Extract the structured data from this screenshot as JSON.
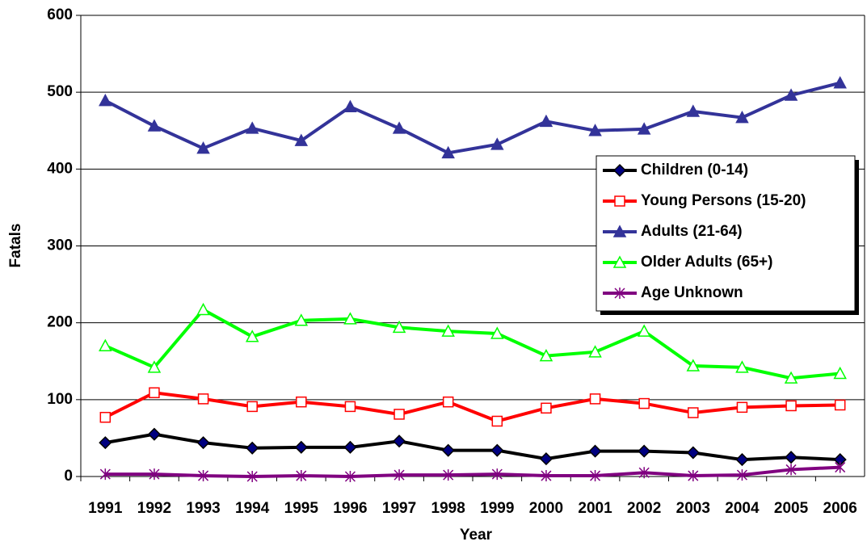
{
  "chart_data": {
    "type": "line",
    "xlabel": "Year",
    "ylabel": "Fatals",
    "categories": [
      "1991",
      "1992",
      "1993",
      "1994",
      "1995",
      "1996",
      "1997",
      "1998",
      "1999",
      "2000",
      "2001",
      "2002",
      "2003",
      "2004",
      "2005",
      "2006"
    ],
    "series": [
      {
        "name": "Children (0-14)",
        "color": "#000000",
        "marker": "diamond",
        "values": [
          44,
          55,
          44,
          37,
          38,
          38,
          46,
          34,
          34,
          23,
          33,
          33,
          31,
          22,
          25,
          22
        ]
      },
      {
        "name": "Young Persons (15-20)",
        "color": "#ff0000",
        "marker": "square-open",
        "values": [
          77,
          109,
          101,
          91,
          97,
          91,
          81,
          97,
          72,
          89,
          101,
          95,
          83,
          90,
          92,
          93
        ]
      },
      {
        "name": "Adults (21-64)",
        "color": "#333399",
        "marker": "triangle",
        "values": [
          489,
          456,
          427,
          453,
          437,
          481,
          453,
          421,
          432,
          462,
          450,
          452,
          475,
          467,
          496,
          512
        ]
      },
      {
        "name": "Older Adults (65+)",
        "color": "#00ff00",
        "marker": "triangle-open",
        "values": [
          170,
          142,
          217,
          182,
          203,
          205,
          194,
          189,
          186,
          157,
          162,
          189,
          144,
          142,
          128,
          134
        ]
      },
      {
        "name": "Age Unknown",
        "color": "#800080",
        "marker": "star",
        "values": [
          3,
          3,
          1,
          0,
          1,
          0,
          2,
          2,
          3,
          1,
          1,
          5,
          1,
          2,
          9,
          12
        ]
      }
    ],
    "ylim": [
      0,
      600
    ],
    "yticks": [
      0,
      100,
      200,
      300,
      400,
      500,
      600
    ],
    "grid": true,
    "legend": "right"
  }
}
